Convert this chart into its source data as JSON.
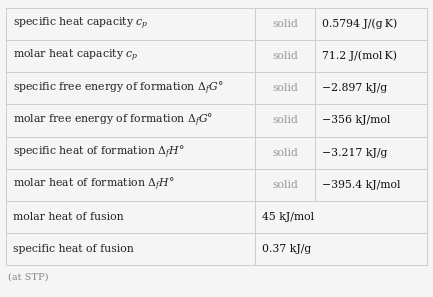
{
  "rows": [
    {
      "col1": "specific heat capacity $c_p$",
      "col2": "solid",
      "col3": "0.5794 J/(g K)",
      "span": false
    },
    {
      "col1": "molar heat capacity $c_p$",
      "col2": "solid",
      "col3": "71.2 J/(mol K)",
      "span": false
    },
    {
      "col1": "specific free energy of formation $\\Delta_f G°$",
      "col2": "solid",
      "col3": "−2.897 kJ/g",
      "span": false
    },
    {
      "col1": "molar free energy of formation $\\Delta_f G°$",
      "col2": "solid",
      "col3": "−356 kJ/mol",
      "span": false
    },
    {
      "col1": "specific heat of formation $\\Delta_f H°$",
      "col2": "solid",
      "col3": "−3.217 kJ/g",
      "span": false
    },
    {
      "col1": "molar heat of formation $\\Delta_f H°$",
      "col2": "solid",
      "col3": "−395.4 kJ/mol",
      "span": false
    },
    {
      "col1": "molar heat of fusion",
      "col2": "45 kJ/mol",
      "col3": "",
      "span": true
    },
    {
      "col1": "specific heat of fusion",
      "col2": "0.37 kJ/g",
      "col3": "",
      "span": true
    }
  ],
  "footnote": "(at STP)",
  "bg_color": "#f5f5f5",
  "text_color": "#222222",
  "solid_color": "#999999",
  "line_color": "#cccccc",
  "value_color": "#111111",
  "footnote_color": "#888888",
  "font_size": 7.8,
  "footnote_size": 7.0
}
